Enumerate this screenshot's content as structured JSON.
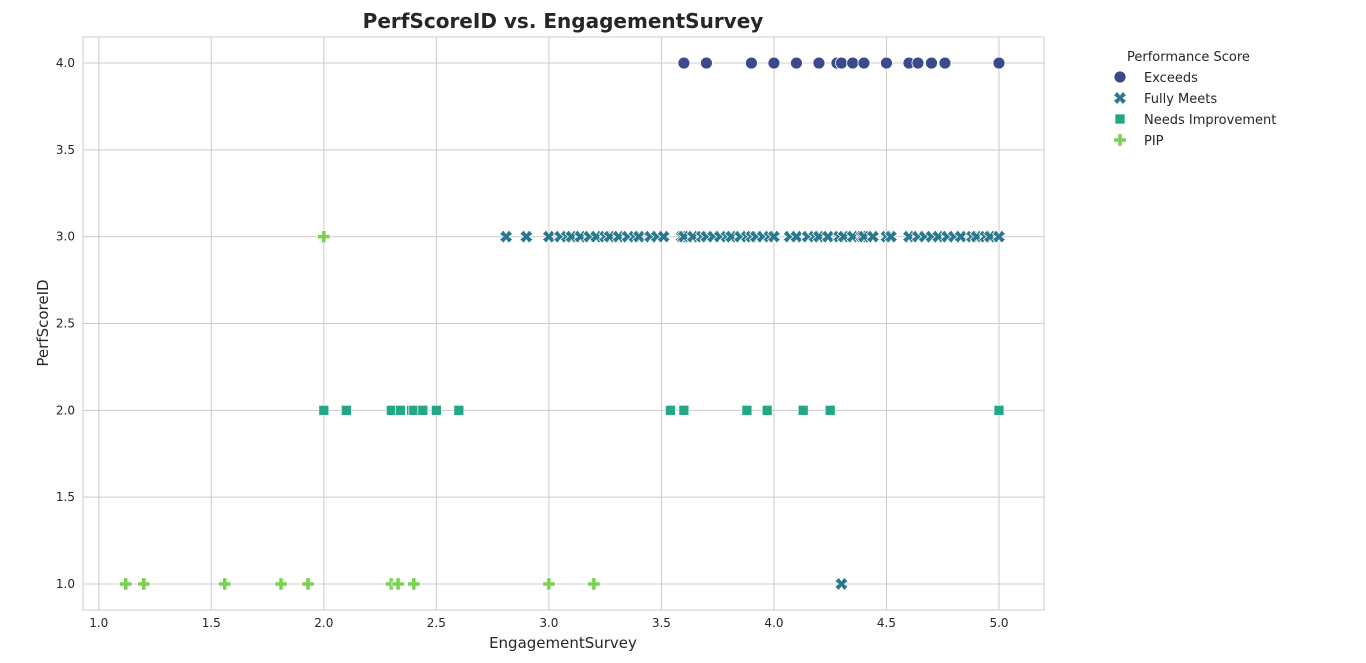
{
  "chart_data": {
    "type": "scatter",
    "title": "PerfScoreID vs. EngagementSurvey",
    "xlabel": "EngagementSurvey",
    "ylabel": "PerfScoreID",
    "xlim": [
      0.93,
      5.2
    ],
    "ylim": [
      0.85,
      4.15
    ],
    "xticks": [
      "1.0",
      "1.5",
      "2.0",
      "2.5",
      "3.0",
      "3.5",
      "4.0",
      "4.5",
      "5.0"
    ],
    "yticks": [
      "1.0",
      "1.5",
      "2.0",
      "2.5",
      "3.0",
      "3.5",
      "4.0"
    ],
    "grid": true,
    "legend": {
      "title": "Performance Score",
      "placement": "outside-top-right"
    },
    "series": [
      {
        "name": "Exceeds",
        "marker": "circle",
        "color": "#3b4a8c",
        "points": [
          [
            3.6,
            4
          ],
          [
            3.7,
            4
          ],
          [
            3.9,
            4
          ],
          [
            4.0,
            4
          ],
          [
            4.1,
            4
          ],
          [
            4.2,
            4
          ],
          [
            4.28,
            4
          ],
          [
            4.3,
            4
          ],
          [
            4.35,
            4
          ],
          [
            4.4,
            4
          ],
          [
            4.5,
            4
          ],
          [
            4.6,
            4
          ],
          [
            4.64,
            4
          ],
          [
            4.7,
            4
          ],
          [
            4.76,
            4
          ],
          [
            5.0,
            4
          ]
        ]
      },
      {
        "name": "Fully Meets",
        "marker": "x",
        "color": "#2a788e",
        "points": [
          [
            2.81,
            3
          ],
          [
            2.9,
            3
          ],
          [
            3.0,
            3
          ],
          [
            3.05,
            3
          ],
          [
            3.08,
            3
          ],
          [
            3.1,
            3
          ],
          [
            3.14,
            3
          ],
          [
            3.18,
            3
          ],
          [
            3.21,
            3
          ],
          [
            3.25,
            3
          ],
          [
            3.27,
            3
          ],
          [
            3.31,
            3
          ],
          [
            3.35,
            3
          ],
          [
            3.38,
            3
          ],
          [
            3.4,
            3
          ],
          [
            3.45,
            3
          ],
          [
            3.48,
            3
          ],
          [
            3.51,
            3
          ],
          [
            3.59,
            3
          ],
          [
            3.6,
            3
          ],
          [
            3.64,
            3
          ],
          [
            3.68,
            3
          ],
          [
            3.7,
            3
          ],
          [
            3.73,
            3
          ],
          [
            3.76,
            3
          ],
          [
            3.79,
            3
          ],
          [
            3.81,
            3
          ],
          [
            3.85,
            3
          ],
          [
            3.88,
            3
          ],
          [
            3.9,
            3
          ],
          [
            3.92,
            3
          ],
          [
            3.95,
            3
          ],
          [
            3.98,
            3
          ],
          [
            4.0,
            3
          ],
          [
            4.07,
            3
          ],
          [
            4.1,
            3
          ],
          [
            4.15,
            3
          ],
          [
            4.18,
            3
          ],
          [
            4.2,
            3
          ],
          [
            4.24,
            3
          ],
          [
            4.29,
            3
          ],
          [
            4.31,
            3
          ],
          [
            4.35,
            3
          ],
          [
            4.39,
            3
          ],
          [
            4.4,
            3
          ],
          [
            4.44,
            3
          ],
          [
            4.5,
            3
          ],
          [
            4.52,
            3
          ],
          [
            4.6,
            3
          ],
          [
            4.64,
            3
          ],
          [
            4.67,
            3
          ],
          [
            4.7,
            3
          ],
          [
            4.73,
            3
          ],
          [
            4.77,
            3
          ],
          [
            4.8,
            3
          ],
          [
            4.83,
            3
          ],
          [
            4.88,
            3
          ],
          [
            4.9,
            3
          ],
          [
            4.94,
            3
          ],
          [
            4.96,
            3
          ],
          [
            5.0,
            3
          ],
          [
            4.3,
            1
          ]
        ]
      },
      {
        "name": "Needs Improvement",
        "marker": "square",
        "color": "#22a884",
        "points": [
          [
            2.0,
            2
          ],
          [
            2.1,
            2
          ],
          [
            2.3,
            2
          ],
          [
            2.34,
            2
          ],
          [
            2.39,
            2
          ],
          [
            2.4,
            2
          ],
          [
            2.44,
            2
          ],
          [
            2.5,
            2
          ],
          [
            2.6,
            2
          ],
          [
            3.54,
            2
          ],
          [
            3.6,
            2
          ],
          [
            3.88,
            2
          ],
          [
            3.97,
            2
          ],
          [
            4.13,
            2
          ],
          [
            4.25,
            2
          ],
          [
            5.0,
            2
          ]
        ]
      },
      {
        "name": "PIP",
        "marker": "plus",
        "color": "#7ad151",
        "points": [
          [
            2.0,
            3
          ],
          [
            1.12,
            1
          ],
          [
            1.2,
            1
          ],
          [
            1.56,
            1
          ],
          [
            1.81,
            1
          ],
          [
            1.93,
            1
          ],
          [
            2.3,
            1
          ],
          [
            2.33,
            1
          ],
          [
            2.4,
            1
          ],
          [
            3.0,
            1
          ],
          [
            3.2,
            1
          ]
        ]
      }
    ]
  }
}
